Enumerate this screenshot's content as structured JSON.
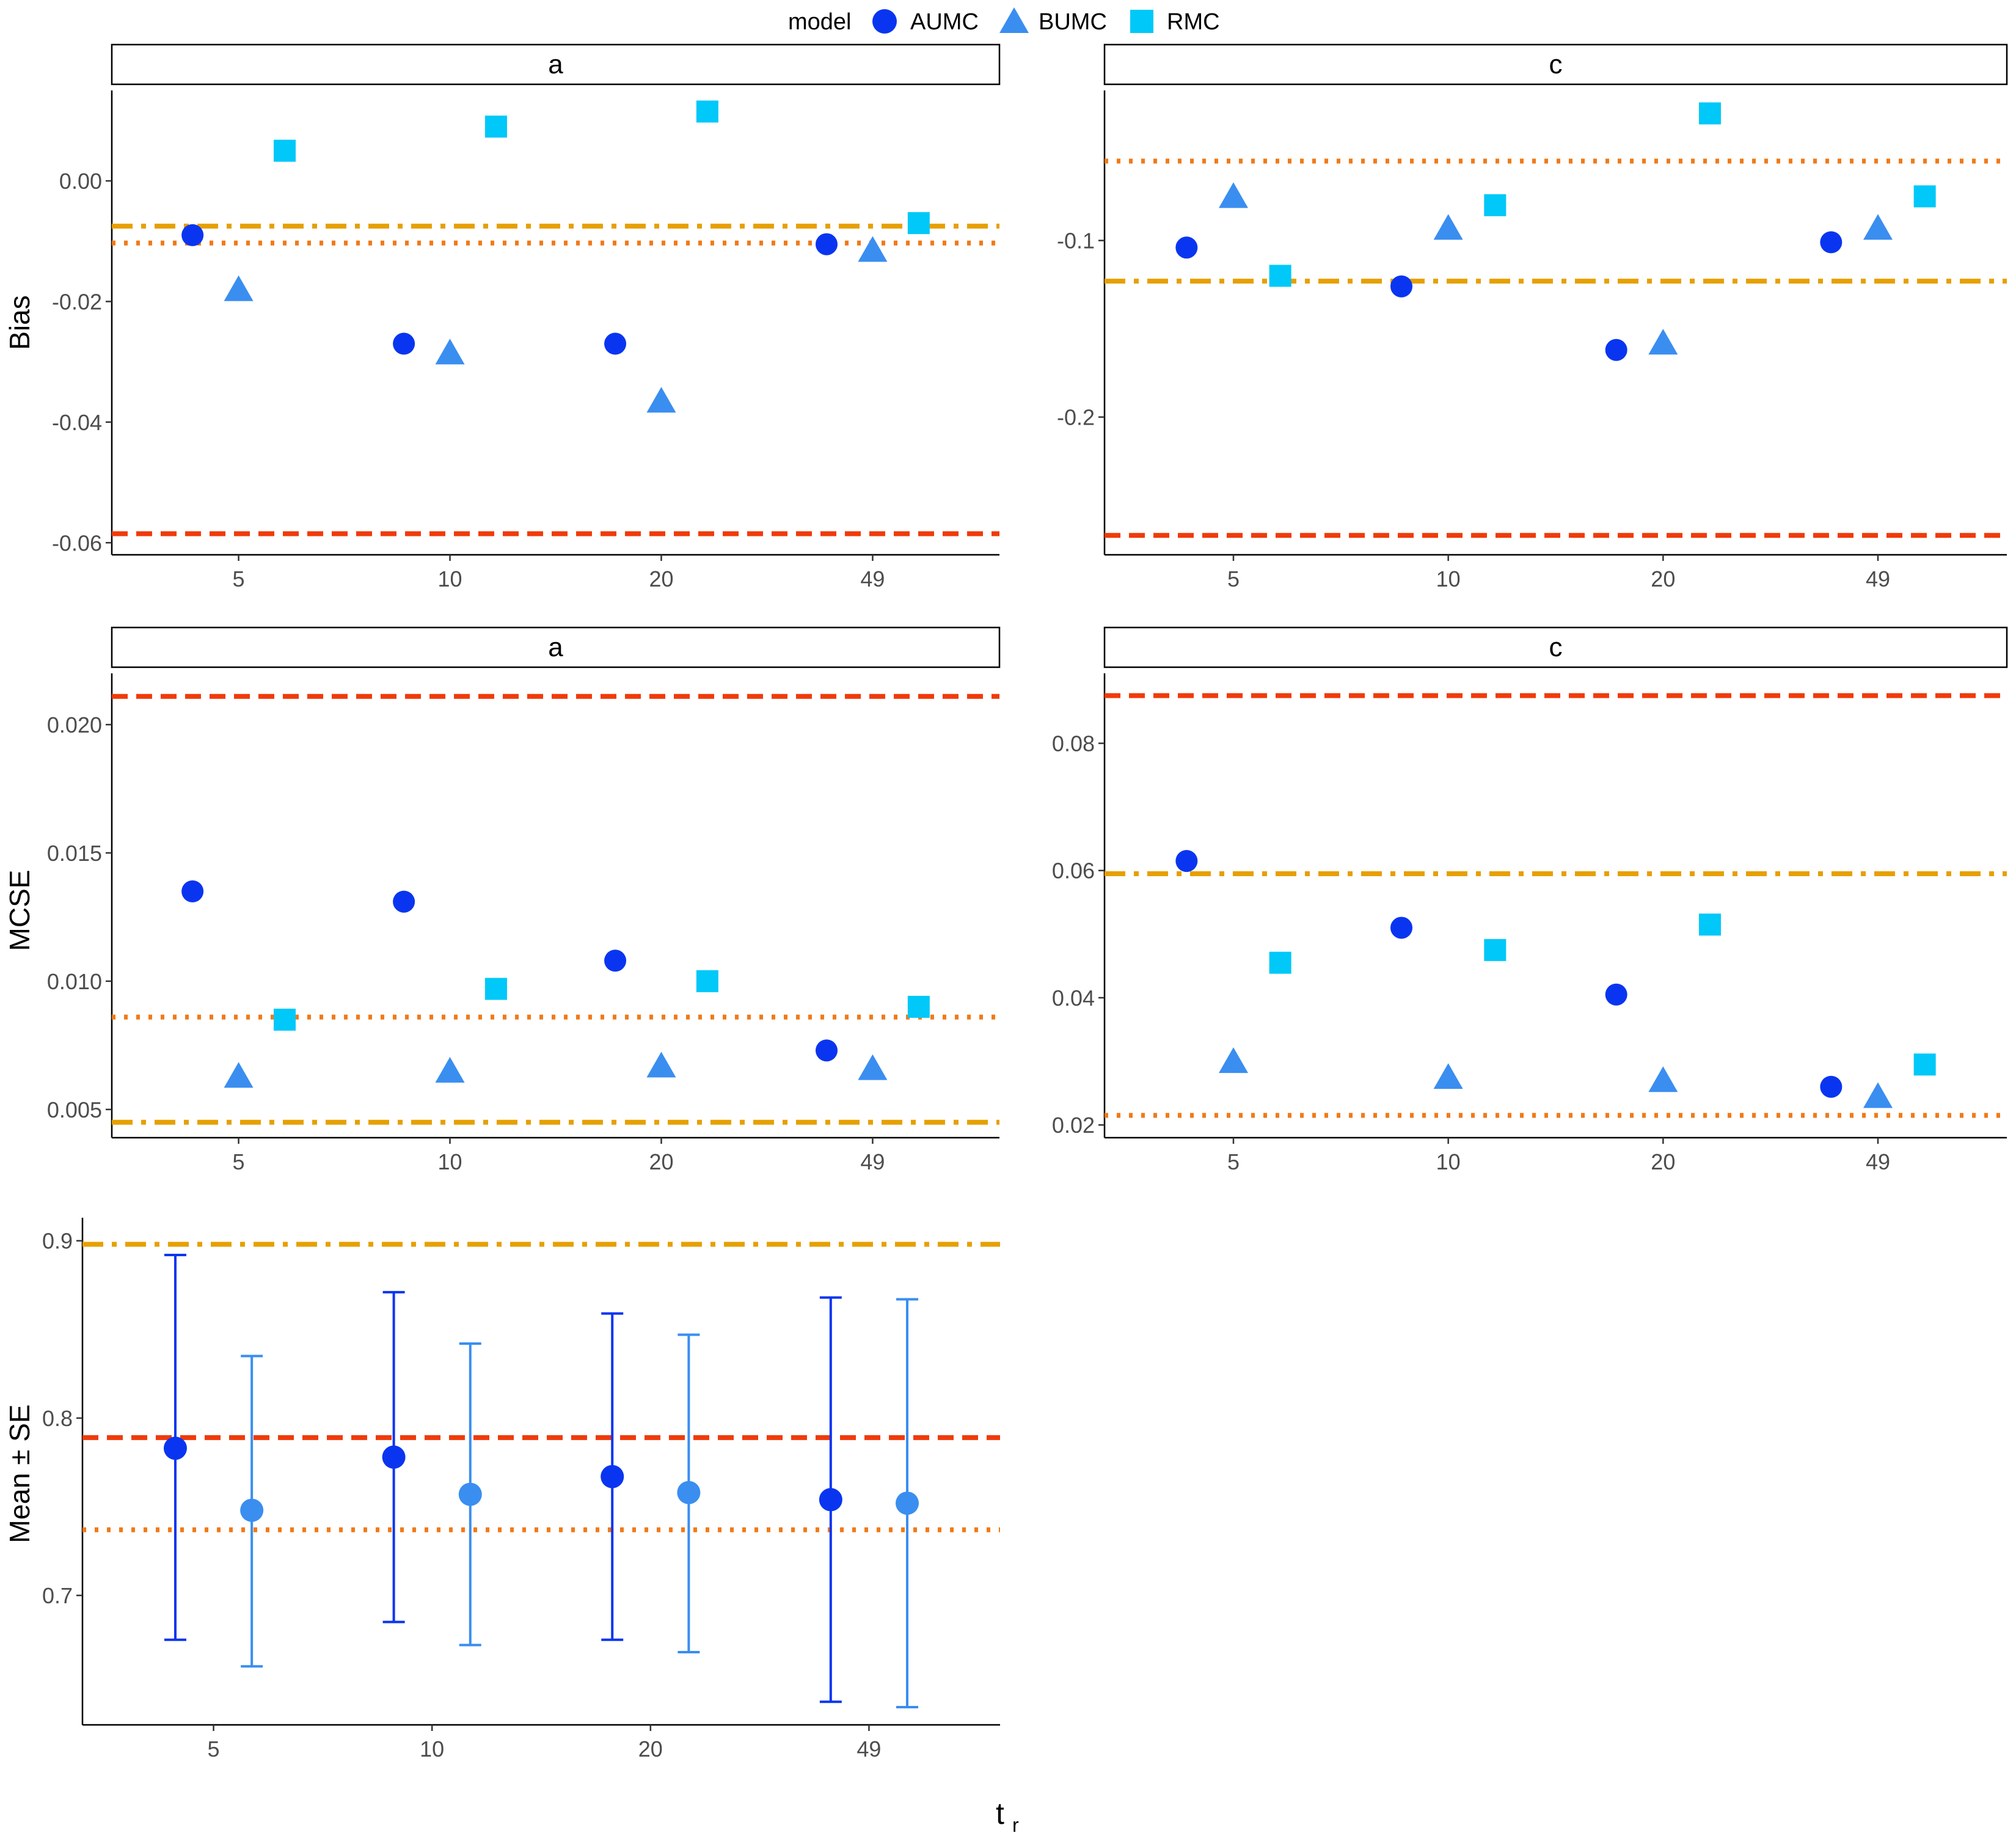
{
  "figure": {
    "x_label_main": "t",
    "x_label_sub": "r",
    "legend": {
      "title": "model",
      "items": [
        {
          "name": "AUMC",
          "shape": "circle",
          "color": "#0A35F0"
        },
        {
          "name": "BUMC",
          "shape": "triangle",
          "color": "#3A8EF0"
        },
        {
          "name": "RMC",
          "shape": "square",
          "color": "#00C8F8"
        }
      ]
    },
    "colors": {
      "ref_dash": "#F03A0A",
      "ref_dot": "#F07A18",
      "ref_dashdot": "#E6A000",
      "se_light": "#3A8EF0"
    }
  },
  "chart_data": [
    {
      "type": "scatter",
      "strip": "a",
      "ylabel": "Bias",
      "categories": [
        "5",
        "10",
        "20",
        "49"
      ],
      "ylim": [
        -0.062,
        0.015
      ],
      "yticks": [
        0.0,
        -0.02,
        -0.04,
        -0.06
      ],
      "ytick_labels": [
        "0.00",
        "-0.02",
        "-0.04",
        "-0.06"
      ],
      "series": [
        {
          "name": "AUMC",
          "values": [
            -0.009,
            -0.027,
            -0.027,
            -0.0105
          ]
        },
        {
          "name": "BUMC",
          "values": [
            -0.018,
            -0.0285,
            -0.0365,
            -0.0115
          ]
        },
        {
          "name": "RMC",
          "values": [
            0.005,
            0.009,
            0.0115,
            -0.007
          ]
        }
      ],
      "hlines": [
        {
          "y": -0.0075,
          "style": "dashdot"
        },
        {
          "y": -0.0103,
          "style": "dotted"
        },
        {
          "y": -0.0585,
          "style": "dashed"
        }
      ]
    },
    {
      "type": "scatter",
      "strip": "c",
      "ylabel": "",
      "categories": [
        "5",
        "10",
        "20",
        "49"
      ],
      "ylim": [
        -0.278,
        -0.015
      ],
      "yticks": [
        -0.1,
        -0.2
      ],
      "ytick_labels": [
        "-0.1",
        "-0.2"
      ],
      "series": [
        {
          "name": "AUMC",
          "values": [
            -0.104,
            -0.126,
            -0.162,
            -0.101
          ]
        },
        {
          "name": "BUMC",
          "values": [
            -0.075,
            -0.093,
            -0.158,
            -0.093
          ]
        },
        {
          "name": "RMC",
          "values": [
            -0.12,
            -0.08,
            -0.028,
            -0.075
          ]
        }
      ],
      "hlines": [
        {
          "y": -0.055,
          "style": "dotted"
        },
        {
          "y": -0.123,
          "style": "dashdot"
        },
        {
          "y": -0.267,
          "style": "dashed"
        }
      ]
    },
    {
      "type": "scatter",
      "strip": "a",
      "ylabel": "MCSE",
      "categories": [
        "5",
        "10",
        "20",
        "49"
      ],
      "ylim": [
        0.0039,
        0.022
      ],
      "yticks": [
        0.005,
        0.01,
        0.015,
        0.02
      ],
      "ytick_labels": [
        "0.005",
        "0.010",
        "0.015",
        "0.020"
      ],
      "series": [
        {
          "name": "AUMC",
          "values": [
            0.0135,
            0.0131,
            0.0108,
            0.0073
          ]
        },
        {
          "name": "BUMC",
          "values": [
            0.0063,
            0.0065,
            0.0067,
            0.0066
          ]
        },
        {
          "name": "RMC",
          "values": [
            0.0085,
            0.0097,
            0.01,
            0.009
          ]
        }
      ],
      "hlines": [
        {
          "y": 0.0211,
          "style": "dashed"
        },
        {
          "y": 0.0086,
          "style": "dotted"
        },
        {
          "y": 0.0045,
          "style": "dashdot"
        }
      ]
    },
    {
      "type": "scatter",
      "strip": "c",
      "ylabel": "",
      "categories": [
        "5",
        "10",
        "20",
        "49"
      ],
      "ylim": [
        0.018,
        0.091
      ],
      "yticks": [
        0.02,
        0.04,
        0.06,
        0.08
      ],
      "ytick_labels": [
        "0.02",
        "0.04",
        "0.06",
        "0.08"
      ],
      "series": [
        {
          "name": "AUMC",
          "values": [
            0.0615,
            0.051,
            0.0405,
            0.026
          ]
        },
        {
          "name": "BUMC",
          "values": [
            0.03,
            0.0275,
            0.027,
            0.0245
          ]
        },
        {
          "name": "RMC",
          "values": [
            0.0455,
            0.0475,
            0.0515,
            0.0295
          ]
        }
      ],
      "hlines": [
        {
          "y": 0.0875,
          "style": "dashed"
        },
        {
          "y": 0.0595,
          "style": "dashdot"
        },
        {
          "y": 0.0215,
          "style": "dotted"
        }
      ]
    },
    {
      "type": "errorbar",
      "strip": "",
      "ylabel": "Mean ± SE",
      "categories": [
        "5",
        "10",
        "20",
        "49"
      ],
      "ylim": [
        0.627,
        0.913
      ],
      "yticks": [
        0.7,
        0.8,
        0.9
      ],
      "ytick_labels": [
        "0.7",
        "0.8",
        "0.9"
      ],
      "series": [
        {
          "name": "AUMC",
          "mean": [
            0.783,
            0.778,
            0.767,
            0.754
          ],
          "lower": [
            0.675,
            0.685,
            0.675,
            0.64
          ],
          "upper": [
            0.892,
            0.871,
            0.859,
            0.868
          ]
        },
        {
          "name": "BUMC",
          "mean": [
            0.748,
            0.757,
            0.758,
            0.752
          ],
          "lower": [
            0.66,
            0.672,
            0.668,
            0.637
          ],
          "upper": [
            0.835,
            0.842,
            0.847,
            0.867
          ]
        }
      ],
      "hlines": [
        {
          "y": 0.898,
          "style": "dashdot"
        },
        {
          "y": 0.789,
          "style": "dashed"
        },
        {
          "y": 0.737,
          "style": "dotted"
        }
      ]
    }
  ]
}
